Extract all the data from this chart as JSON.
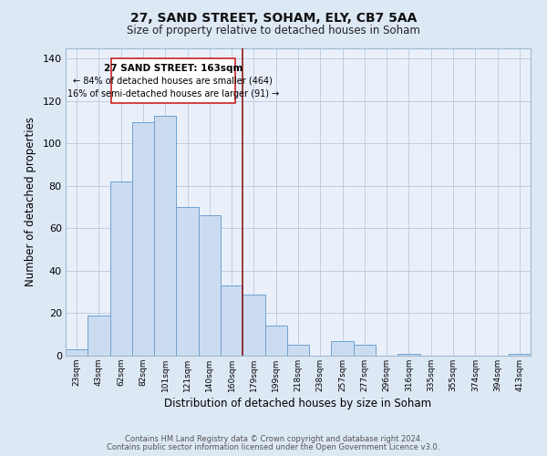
{
  "title": "27, SAND STREET, SOHAM, ELY, CB7 5AA",
  "subtitle": "Size of property relative to detached houses in Soham",
  "xlabel": "Distribution of detached houses by size in Soham",
  "ylabel": "Number of detached properties",
  "bar_labels": [
    "23sqm",
    "43sqm",
    "62sqm",
    "82sqm",
    "101sqm",
    "121sqm",
    "140sqm",
    "160sqm",
    "179sqm",
    "199sqm",
    "218sqm",
    "238sqm",
    "257sqm",
    "277sqm",
    "296sqm",
    "316sqm",
    "335sqm",
    "355sqm",
    "374sqm",
    "394sqm",
    "413sqm"
  ],
  "bar_values": [
    3,
    19,
    82,
    110,
    113,
    70,
    66,
    33,
    29,
    14,
    5,
    0,
    7,
    5,
    0,
    1,
    0,
    0,
    0,
    0,
    1
  ],
  "bar_color": "#ccdcf0",
  "bar_edgecolor": "#6da0d0",
  "ylim": [
    0,
    145
  ],
  "yticks": [
    0,
    20,
    40,
    60,
    80,
    100,
    120,
    140
  ],
  "property_line_color": "#8b1a1a",
  "annotation_title": "27 SAND STREET: 163sqm",
  "annotation_line1": "← 84% of detached houses are smaller (464)",
  "annotation_line2": "16% of semi-detached houses are larger (91) →",
  "annotation_box_edgecolor": "#cc2222",
  "footer1": "Contains HM Land Registry data © Crown copyright and database right 2024.",
  "footer2": "Contains public sector information licensed under the Open Government Licence v3.0.",
  "bg_color": "#dde8f5",
  "plot_bg_color": "#eaf0fa"
}
